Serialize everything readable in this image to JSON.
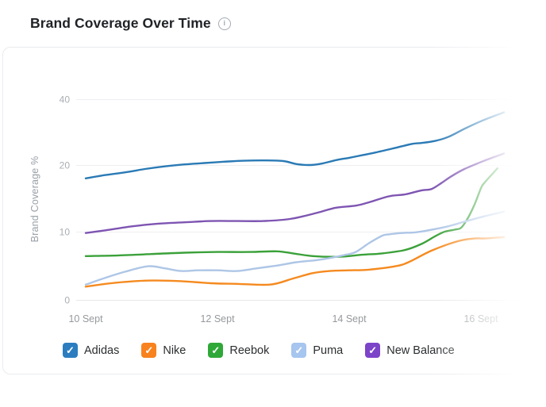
{
  "header": {
    "title": "Brand Coverage Over Time"
  },
  "chart_data": {
    "type": "line",
    "title": "Brand Coverage Over Time",
    "xlabel": "",
    "ylabel": "Brand Coverage %",
    "x_ticks": [
      "10 Sept",
      "12 Sept",
      "14 Sept",
      "16 Sept"
    ],
    "x_tick_days": [
      0,
      2,
      4,
      6
    ],
    "y_ticks": [
      0,
      10,
      20,
      40
    ],
    "ylim": [
      0,
      44
    ],
    "y_scale": "ticks 0,10,20,40 evenly spaced (log2 above 10, linear 0-10)",
    "grid": "horizontal",
    "legend_position": "bottom",
    "x_unit": "days since 10 Sept",
    "series": [
      {
        "name": "Adidas",
        "line_color": "#2a7ab5",
        "checkbox_color": "#2b7dc0",
        "checked": true,
        "points": [
          [
            0,
            18.0
          ],
          [
            0.3,
            18.5
          ],
          [
            0.6,
            18.9
          ],
          [
            0.9,
            19.4
          ],
          [
            1.2,
            19.8
          ],
          [
            1.5,
            20.2
          ],
          [
            1.8,
            20.6
          ],
          [
            2.1,
            21.0
          ],
          [
            2.4,
            21.3
          ],
          [
            2.7,
            21.4
          ],
          [
            3.0,
            21.2
          ],
          [
            3.2,
            20.3
          ],
          [
            3.4,
            20.0
          ],
          [
            3.6,
            20.5
          ],
          [
            3.8,
            21.5
          ],
          [
            4.0,
            22.2
          ],
          [
            4.2,
            23.0
          ],
          [
            4.4,
            23.8
          ],
          [
            4.7,
            25.2
          ],
          [
            4.95,
            26.4
          ],
          [
            5.1,
            26.7
          ],
          [
            5.3,
            27.3
          ],
          [
            5.5,
            28.5
          ],
          [
            5.75,
            31.0
          ],
          [
            6.0,
            33.3
          ],
          [
            6.35,
            36.0
          ]
        ]
      },
      {
        "name": "Nike",
        "line_color": "#f58a1f",
        "checkbox_color": "#f8821d",
        "checked": true,
        "points": [
          [
            0,
            1.9
          ],
          [
            0.3,
            2.3
          ],
          [
            0.6,
            2.6
          ],
          [
            1.0,
            2.8
          ],
          [
            1.45,
            2.7
          ],
          [
            1.9,
            2.4
          ],
          [
            2.3,
            2.3
          ],
          [
            2.8,
            2.2
          ],
          [
            3.15,
            3.1
          ],
          [
            3.45,
            3.9
          ],
          [
            3.7,
            4.2
          ],
          [
            4.0,
            4.3
          ],
          [
            4.3,
            4.4
          ],
          [
            4.7,
            4.9
          ],
          [
            4.9,
            5.5
          ],
          [
            5.25,
            7.2
          ],
          [
            5.65,
            8.6
          ],
          [
            5.9,
            9.0
          ],
          [
            6.05,
            9.0
          ],
          [
            6.35,
            9.2
          ]
        ]
      },
      {
        "name": "Reebok",
        "line_color": "#3ba13a",
        "checkbox_color": "#2fa838",
        "checked": true,
        "points": [
          [
            0,
            6.4
          ],
          [
            0.5,
            6.5
          ],
          [
            1.0,
            6.7
          ],
          [
            1.5,
            6.9
          ],
          [
            2.0,
            7.0
          ],
          [
            2.5,
            7.0
          ],
          [
            2.9,
            7.1
          ],
          [
            3.15,
            6.8
          ],
          [
            3.45,
            6.4
          ],
          [
            3.85,
            6.3
          ],
          [
            4.2,
            6.6
          ],
          [
            4.5,
            6.8
          ],
          [
            4.85,
            7.3
          ],
          [
            5.1,
            8.2
          ],
          [
            5.3,
            9.3
          ],
          [
            5.45,
            10.0
          ],
          [
            5.6,
            10.3
          ],
          [
            5.7,
            10.6
          ],
          [
            5.8,
            12.0
          ],
          [
            5.9,
            14.0
          ],
          [
            6.0,
            16.5
          ],
          [
            6.05,
            17.3
          ],
          [
            6.25,
            19.5
          ]
        ]
      },
      {
        "name": "Puma",
        "line_color": "#aec6e6",
        "checkbox_color": "#a6c5ef",
        "checked": true,
        "points": [
          [
            0,
            2.2
          ],
          [
            0.3,
            3.2
          ],
          [
            0.6,
            4.1
          ],
          [
            0.95,
            4.9
          ],
          [
            1.2,
            4.6
          ],
          [
            1.45,
            4.2
          ],
          [
            1.7,
            4.3
          ],
          [
            2.0,
            4.3
          ],
          [
            2.3,
            4.2
          ],
          [
            2.6,
            4.6
          ],
          [
            2.9,
            5.0
          ],
          [
            3.2,
            5.5
          ],
          [
            3.5,
            5.8
          ],
          [
            3.7,
            6.1
          ],
          [
            3.95,
            6.6
          ],
          [
            4.1,
            7.0
          ],
          [
            4.3,
            8.3
          ],
          [
            4.5,
            9.4
          ],
          [
            4.6,
            9.6
          ],
          [
            4.8,
            9.8
          ],
          [
            5.0,
            9.9
          ],
          [
            5.2,
            10.2
          ],
          [
            5.5,
            10.8
          ],
          [
            5.75,
            11.5
          ],
          [
            6.05,
            12.3
          ],
          [
            6.35,
            13.0
          ]
        ]
      },
      {
        "name": "New Balance",
        "line_color": "#7e55b2",
        "checkbox_color": "#7c44c9",
        "checked": true,
        "points": [
          [
            0,
            9.8
          ],
          [
            0.3,
            10.2
          ],
          [
            0.7,
            10.8
          ],
          [
            1.1,
            11.2
          ],
          [
            1.5,
            11.4
          ],
          [
            1.9,
            11.6
          ],
          [
            2.3,
            11.6
          ],
          [
            2.7,
            11.6
          ],
          [
            3.1,
            11.9
          ],
          [
            3.5,
            12.8
          ],
          [
            3.8,
            13.6
          ],
          [
            4.1,
            13.9
          ],
          [
            4.3,
            14.4
          ],
          [
            4.6,
            15.3
          ],
          [
            4.85,
            15.6
          ],
          [
            5.1,
            16.2
          ],
          [
            5.25,
            16.4
          ],
          [
            5.4,
            17.3
          ],
          [
            5.55,
            18.3
          ],
          [
            5.75,
            19.4
          ],
          [
            6.05,
            21.3
          ],
          [
            6.35,
            23.5
          ]
        ]
      }
    ]
  },
  "legend": {
    "check_glyph": "✓"
  }
}
